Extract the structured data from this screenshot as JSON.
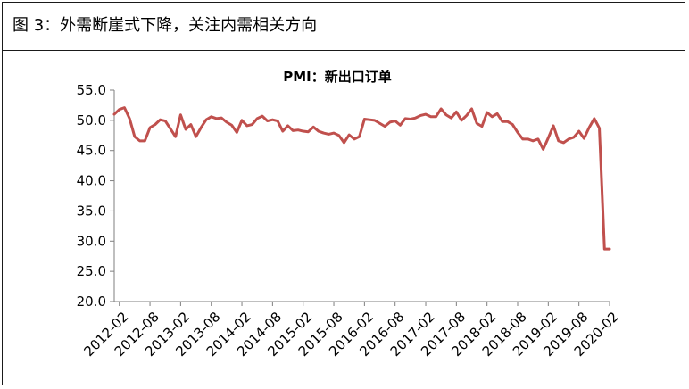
{
  "caption": "图 3：外需断崖式下降，关注内需相关方向",
  "chart_data": {
    "type": "line",
    "title": "PMI：新出口订单",
    "xlabel": "",
    "ylabel": "",
    "ylim": [
      20.0,
      55.0
    ],
    "yticks": [
      "20.0",
      "25.0",
      "30.0",
      "35.0",
      "40.0",
      "45.0",
      "50.0",
      "55.0"
    ],
    "xtick_labels": [
      "2012-02",
      "2012-08",
      "2013-02",
      "2013-08",
      "2014-02",
      "2014-08",
      "2015-02",
      "2015-08",
      "2016-02",
      "2016-08",
      "2017-02",
      "2017-08",
      "2018-02",
      "2018-08",
      "2019-02",
      "2019-08",
      "2020-02"
    ],
    "grid": false,
    "legend": "none",
    "colors": {
      "line": "#c0504d",
      "axis": "#7f7f7f"
    },
    "series": [
      {
        "name": "PMI：新出口订单",
        "x": [
          "2012-01",
          "2012-02",
          "2012-03",
          "2012-04",
          "2012-05",
          "2012-06",
          "2012-07",
          "2012-08",
          "2012-09",
          "2012-10",
          "2012-11",
          "2012-12",
          "2013-01",
          "2013-02",
          "2013-03",
          "2013-04",
          "2013-05",
          "2013-06",
          "2013-07",
          "2013-08",
          "2013-09",
          "2013-10",
          "2013-11",
          "2013-12",
          "2014-01",
          "2014-02",
          "2014-03",
          "2014-04",
          "2014-05",
          "2014-06",
          "2014-07",
          "2014-08",
          "2014-09",
          "2014-10",
          "2014-11",
          "2014-12",
          "2015-01",
          "2015-02",
          "2015-03",
          "2015-04",
          "2015-05",
          "2015-06",
          "2015-07",
          "2015-08",
          "2015-09",
          "2015-10",
          "2015-11",
          "2015-12",
          "2016-01",
          "2016-02",
          "2016-03",
          "2016-04",
          "2016-05",
          "2016-06",
          "2016-07",
          "2016-08",
          "2016-09",
          "2016-10",
          "2016-11",
          "2016-12",
          "2017-01",
          "2017-02",
          "2017-03",
          "2017-04",
          "2017-05",
          "2017-06",
          "2017-07",
          "2017-08",
          "2017-09",
          "2017-10",
          "2017-11",
          "2017-12",
          "2018-01",
          "2018-02",
          "2018-03",
          "2018-04",
          "2018-05",
          "2018-06",
          "2018-07",
          "2018-08",
          "2018-09",
          "2018-10",
          "2018-11",
          "2018-12",
          "2019-01",
          "2019-02",
          "2019-03",
          "2019-04",
          "2019-05",
          "2019-06",
          "2019-07",
          "2019-08",
          "2019-09",
          "2019-10",
          "2019-11",
          "2019-12",
          "2020-01",
          "2020-02"
        ],
        "values": [
          51.0,
          51.8,
          52.1,
          50.3,
          47.3,
          46.6,
          46.6,
          48.8,
          49.3,
          50.1,
          49.9,
          48.6,
          47.3,
          50.9,
          48.5,
          49.3,
          47.3,
          48.8,
          50.1,
          50.6,
          50.3,
          50.4,
          49.7,
          49.2,
          48.0,
          50.0,
          49.1,
          49.3,
          50.3,
          50.7,
          49.9,
          50.1,
          49.9,
          48.2,
          49.1,
          48.3,
          48.4,
          48.2,
          48.1,
          48.9,
          48.2,
          47.9,
          47.7,
          47.9,
          47.5,
          46.3,
          47.6,
          46.9,
          47.3,
          50.2,
          50.1,
          50.0,
          49.5,
          49.0,
          49.7,
          49.9,
          49.2,
          50.3,
          50.2,
          50.4,
          50.8,
          51.0,
          50.6,
          50.6,
          51.9,
          50.9,
          50.4,
          51.4,
          50.0,
          50.8,
          51.9,
          49.5,
          49.0,
          51.3,
          50.6,
          51.1,
          49.8,
          49.8,
          49.3,
          48.0,
          46.9,
          46.9,
          46.6,
          46.9,
          45.2,
          47.1,
          49.1,
          46.6,
          46.3,
          46.9,
          47.2,
          48.2,
          47.0,
          48.8,
          50.3,
          48.7,
          28.7,
          28.7
        ]
      }
    ]
  }
}
